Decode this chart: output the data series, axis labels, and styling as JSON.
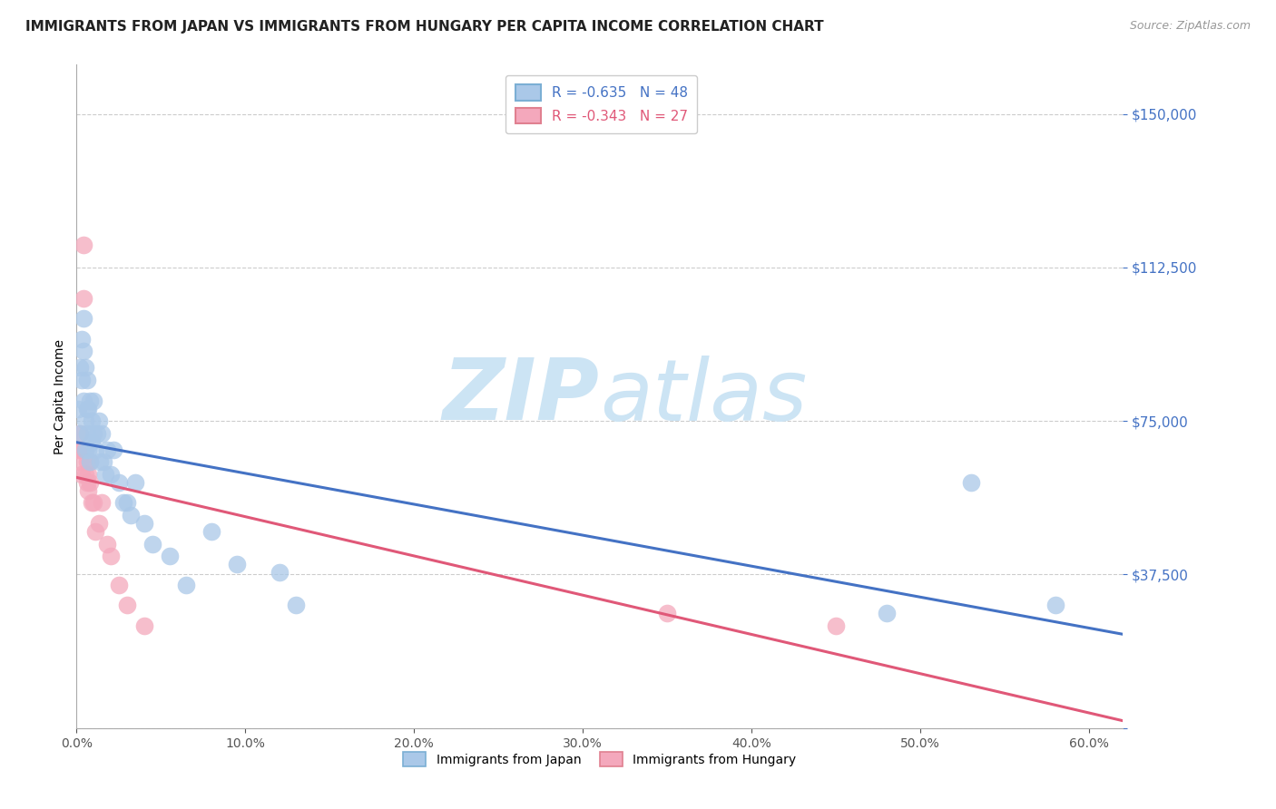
{
  "title": "IMMIGRANTS FROM JAPAN VS IMMIGRANTS FROM HUNGARY PER CAPITA INCOME CORRELATION CHART",
  "source": "Source: ZipAtlas.com",
  "ylabel": "Per Capita Income",
  "yticks": [
    0,
    37500,
    75000,
    112500,
    150000
  ],
  "ylim": [
    0,
    162000
  ],
  "xlim": [
    0.0,
    0.62
  ],
  "legend_japan": "R = -0.635   N = 48",
  "legend_hungary": "R = -0.343   N = 27",
  "legend_label_japan": "Immigrants from Japan",
  "legend_label_hungary": "Immigrants from Hungary",
  "color_japan": "#aac8e8",
  "color_hungary": "#f4a8bc",
  "line_color_japan": "#4472c4",
  "line_color_hungary": "#e05878",
  "watermark_zip": "ZIP",
  "watermark_atlas": "atlas",
  "watermark_color": "#cce4f4",
  "japan_x": [
    0.001,
    0.002,
    0.002,
    0.003,
    0.003,
    0.004,
    0.004,
    0.004,
    0.005,
    0.005,
    0.005,
    0.006,
    0.006,
    0.006,
    0.007,
    0.007,
    0.008,
    0.008,
    0.009,
    0.009,
    0.01,
    0.01,
    0.011,
    0.012,
    0.013,
    0.014,
    0.015,
    0.016,
    0.017,
    0.018,
    0.02,
    0.022,
    0.025,
    0.028,
    0.03,
    0.032,
    0.035,
    0.04,
    0.045,
    0.055,
    0.065,
    0.08,
    0.095,
    0.12,
    0.13,
    0.48,
    0.53,
    0.58
  ],
  "japan_y": [
    78000,
    72000,
    88000,
    85000,
    95000,
    100000,
    92000,
    80000,
    88000,
    75000,
    68000,
    78000,
    85000,
    72000,
    78000,
    68000,
    80000,
    65000,
    75000,
    70000,
    72000,
    80000,
    68000,
    72000,
    75000,
    65000,
    72000,
    65000,
    62000,
    68000,
    62000,
    68000,
    60000,
    55000,
    55000,
    52000,
    60000,
    50000,
    45000,
    42000,
    35000,
    48000,
    40000,
    38000,
    30000,
    28000,
    60000,
    30000
  ],
  "hungary_x": [
    0.001,
    0.002,
    0.002,
    0.003,
    0.003,
    0.004,
    0.004,
    0.005,
    0.005,
    0.006,
    0.006,
    0.007,
    0.007,
    0.008,
    0.008,
    0.009,
    0.01,
    0.011,
    0.013,
    0.015,
    0.018,
    0.02,
    0.025,
    0.03,
    0.04,
    0.35,
    0.45
  ],
  "hungary_y": [
    68000,
    65000,
    72000,
    68000,
    62000,
    118000,
    105000,
    68000,
    62000,
    65000,
    60000,
    62000,
    58000,
    65000,
    60000,
    55000,
    55000,
    48000,
    50000,
    55000,
    45000,
    42000,
    35000,
    30000,
    25000,
    28000,
    25000
  ],
  "title_fontsize": 11,
  "axis_label_fontsize": 10,
  "tick_fontsize": 11,
  "source_fontsize": 9
}
